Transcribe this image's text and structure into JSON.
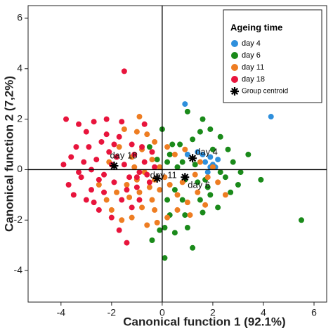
{
  "chart_data": {
    "type": "scatter",
    "x_label": "Canonical function 1 (92.1%)",
    "y_label": "Canonical function 2 (7,2%)",
    "xlim": [
      -5.3,
      6.5
    ],
    "ylim": [
      -5.25,
      6.5
    ],
    "xticks": [
      -4,
      -2,
      0,
      2,
      4,
      6
    ],
    "yticks": [
      -4,
      -2,
      0,
      2,
      4,
      6
    ],
    "grid": false,
    "legend_title": "Ageing time",
    "legend_position": "upper right",
    "series": [
      {
        "name": "day 4",
        "color": "#2e8fdc",
        "x": [
          0.9,
          4.3,
          1.7,
          1.9,
          1.8,
          2.2,
          1.6,
          1.0,
          2.1,
          1.4,
          1.9,
          2.0
        ],
        "y": [
          2.6,
          2.1,
          0.3,
          0.1,
          -0.1,
          0.4,
          0.6,
          0.6,
          0.1,
          0.7,
          0.5,
          0.2
        ]
      },
      {
        "name": "day 6",
        "color": "#1a8a1a",
        "x": [
          1.0,
          1.5,
          1.9,
          2.3,
          1.6,
          3.4,
          2.6,
          2.8,
          3.1,
          2.5,
          3.0,
          3.9,
          5.5,
          2.2,
          1.6,
          0.9,
          1.0,
          1.2,
          0.1,
          0.1,
          -0.4,
          0.5,
          0.2,
          0.5,
          0.9,
          1.4,
          1.8,
          2.3,
          1.3,
          0.8,
          0.6,
          0.2,
          -0.2,
          0.4,
          -0.5,
          0.7,
          1.2,
          0.3,
          2.0,
          2.7,
          1.5,
          0.3,
          -0.1,
          1.9,
          1.7,
          0.0,
          0.8
        ],
        "y": [
          2.3,
          1.5,
          1.6,
          1.3,
          2.0,
          0.6,
          0.8,
          0.3,
          -0.1,
          -0.3,
          -0.6,
          -0.4,
          -2.0,
          -1.5,
          -1.7,
          -1.8,
          -2.3,
          -3.1,
          -3.5,
          -2.3,
          -2.8,
          -2.5,
          -1.2,
          -0.8,
          -0.4,
          -0.5,
          -0.7,
          -0.1,
          0.2,
          0.3,
          0.1,
          0.3,
          0.4,
          1.0,
          0.9,
          1.0,
          1.2,
          0.6,
          0.8,
          -0.9,
          -1.2,
          -1.8,
          -2.4,
          -1.0,
          -0.4,
          1.6,
          -1.2
        ]
      },
      {
        "name": "day 11",
        "color": "#ee7d22",
        "x": [
          -1.5,
          -1.0,
          -0.6,
          -0.3,
          -0.8,
          -1.2,
          -0.4,
          -0.1,
          -0.7,
          -1.0,
          -1.4,
          -1.8,
          -2.2,
          -2.0,
          -1.6,
          -1.2,
          -0.8,
          -0.4,
          -0.1,
          0.3,
          0.6,
          1.0,
          1.4,
          1.8,
          2.2,
          2.0,
          1.5,
          0.9,
          0.5,
          0.2,
          -0.3,
          -0.5,
          -1.3,
          -0.9,
          -0.6,
          -0.3,
          0.2,
          0.6,
          1.1,
          -2.5,
          -2.1,
          -1.7,
          -0.9,
          0.1,
          0.8,
          1.3,
          -1.1,
          2.5,
          1.7,
          -0.2
        ],
        "y": [
          1.6,
          1.5,
          1.4,
          1.1,
          0.8,
          0.5,
          0.4,
          0.1,
          -0.1,
          -0.4,
          -0.6,
          -0.9,
          -1.2,
          -1.6,
          -2.0,
          -1.9,
          -1.5,
          -1.2,
          -0.8,
          -0.6,
          -1.0,
          -1.3,
          -0.9,
          -0.3,
          -0.5,
          0.1,
          0.3,
          0.8,
          0.6,
          0.9,
          -0.4,
          -0.7,
          -1.1,
          -0.9,
          -2.2,
          -1.6,
          -1.9,
          -1.6,
          -1.8,
          -0.6,
          0.3,
          0.9,
          2.1,
          -0.3,
          -0.5,
          -0.2,
          0.1,
          -1.0,
          -1.4,
          -2.1
        ]
      },
      {
        "name": "day 18",
        "color": "#e8143c",
        "x": [
          -3.9,
          -3.7,
          -3.4,
          -3.2,
          -3.0,
          -2.8,
          -2.6,
          -2.4,
          -2.3,
          -2.1,
          -1.9,
          -1.7,
          -1.5,
          -1.3,
          -1.1,
          -0.9,
          -0.7,
          -0.5,
          -0.3,
          -1.5,
          -3.8,
          -3.3,
          -2.7,
          -2.2,
          -1.6,
          -0.7,
          -3.5,
          -3.0,
          -2.5,
          -2.0,
          -1.7,
          -1.4,
          -1.2,
          -0.9,
          -2.8,
          -2.5,
          -2.0,
          -1.8,
          -1.4,
          -1.0,
          -3.6,
          -3.1,
          -2.9,
          -2.2,
          -1.2,
          -0.8,
          -0.4,
          -2.7,
          -2.3,
          -1.6,
          -0.6,
          -3.3,
          -1.9,
          -1.0
        ],
        "y": [
          0.2,
          -0.6,
          0.9,
          -0.3,
          1.5,
          -0.8,
          0.4,
          1.1,
          -0.2,
          0.7,
          -0.5,
          1.3,
          0.2,
          -0.3,
          0.6,
          -0.1,
          0.3,
          -0.5,
          0.1,
          3.9,
          2.0,
          1.8,
          1.9,
          2.0,
          1.9,
          1.8,
          -1.0,
          -1.2,
          -1.6,
          -1.9,
          -2.4,
          -2.9,
          -1.5,
          -1.2,
          0.0,
          -0.4,
          0.2,
          0.5,
          -0.8,
          -0.7,
          0.5,
          0.3,
          0.9,
          1.4,
          1.0,
          0.9,
          0.7,
          -1.3,
          -0.9,
          -1.2,
          -0.2,
          -0.1,
          1.0,
          -0.3
        ]
      }
    ],
    "centroids": {
      "name": "Group centroid",
      "color": "#000000",
      "labels": [
        "day 4",
        "day 6",
        "day 11",
        "day 18"
      ],
      "x": [
        1.2,
        0.9,
        -0.2,
        -1.9
      ],
      "y": [
        0.45,
        -0.3,
        -0.35,
        0.15
      ]
    }
  }
}
